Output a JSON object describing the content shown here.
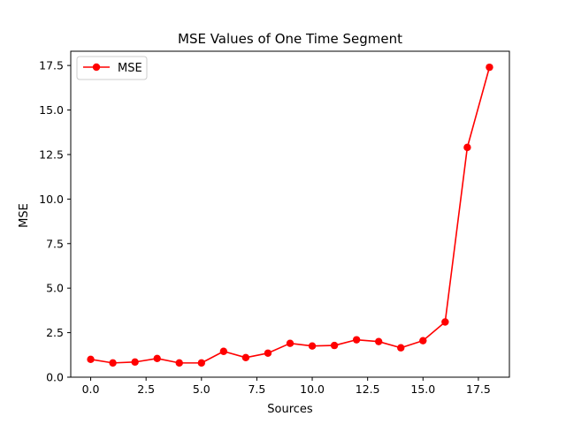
{
  "chart_data": {
    "type": "line",
    "title": "MSE Values of One Time Segment",
    "xlabel": "Sources",
    "ylabel": "MSE",
    "xlim": [
      -0.9,
      18.9
    ],
    "ylim": [
      0,
      18.3
    ],
    "xticks": [
      0.0,
      2.5,
      5.0,
      7.5,
      10.0,
      12.5,
      15.0,
      17.5
    ],
    "xtick_labels": [
      "0.0",
      "2.5",
      "5.0",
      "7.5",
      "10.0",
      "12.5",
      "15.0",
      "17.5"
    ],
    "yticks": [
      0.0,
      2.5,
      5.0,
      7.5,
      10.0,
      12.5,
      15.0,
      17.5
    ],
    "ytick_labels": [
      "0.0",
      "2.5",
      "5.0",
      "7.5",
      "10.0",
      "12.5",
      "15.0",
      "17.5"
    ],
    "grid": false,
    "legend_position": "upper-left",
    "series": [
      {
        "name": "MSE",
        "color": "#ff0000",
        "marker": "circle",
        "x": [
          0,
          1,
          2,
          3,
          4,
          5,
          6,
          7,
          8,
          9,
          10,
          11,
          12,
          13,
          14,
          15,
          16,
          17,
          18
        ],
        "values": [
          1.0,
          0.8,
          0.85,
          1.05,
          0.8,
          0.8,
          1.45,
          1.1,
          1.35,
          1.9,
          1.75,
          1.78,
          2.1,
          2.0,
          1.65,
          2.05,
          3.1,
          12.9,
          17.4
        ]
      }
    ]
  }
}
